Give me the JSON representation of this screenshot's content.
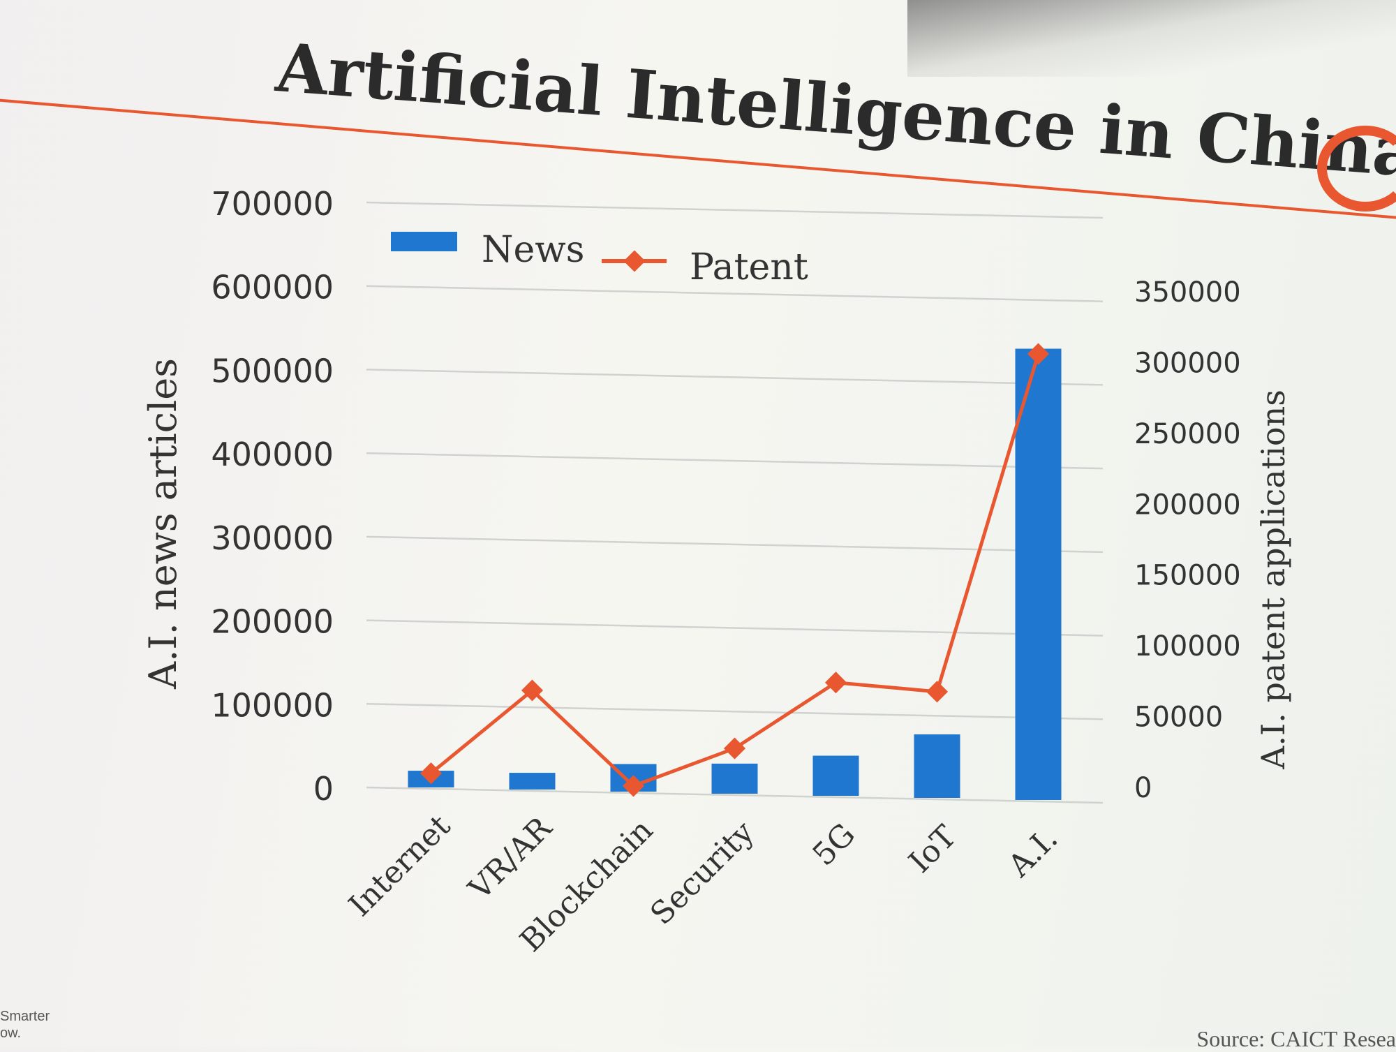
{
  "slide": {
    "title": "Artificial Intelligence in China",
    "footer_left_line1": "Smarter",
    "footer_left_line2": "ow.",
    "source": "Source: CAICT Resea"
  },
  "colors": {
    "news": "#1f77d0",
    "patent": "#e8572f",
    "grid": "#cfd2cf",
    "text": "#333333",
    "accent": "#e8572f"
  },
  "chart_data": {
    "type": "bar",
    "title": "",
    "categories": [
      "Internet",
      "VR/AR",
      "Blockchain",
      "Security",
      "5G",
      "IoT",
      "A.I."
    ],
    "series": [
      {
        "name": "News",
        "type": "bar",
        "axis": "left",
        "values": [
          20000,
          20000,
          33000,
          36000,
          48000,
          76000,
          540000
        ]
      },
      {
        "name": "Patent",
        "type": "line",
        "axis": "right",
        "values": [
          10000,
          70000,
          4000,
          32000,
          80000,
          75000,
          315000
        ]
      }
    ],
    "ylabel": "A.I. news articles",
    "y2label": "A.I. patent applications",
    "ylim": [
      0,
      700000
    ],
    "y2lim": [
      0,
      350000
    ],
    "y_ticks": [
      "700000",
      "600000",
      "500000",
      "400000",
      "300000",
      "200000",
      "100000",
      "0"
    ],
    "y2_ticks": [
      "350000",
      "300000",
      "250000",
      "200000",
      "150000",
      "100000",
      "50000",
      "0"
    ],
    "legend_position": "top-left",
    "grid": true
  }
}
